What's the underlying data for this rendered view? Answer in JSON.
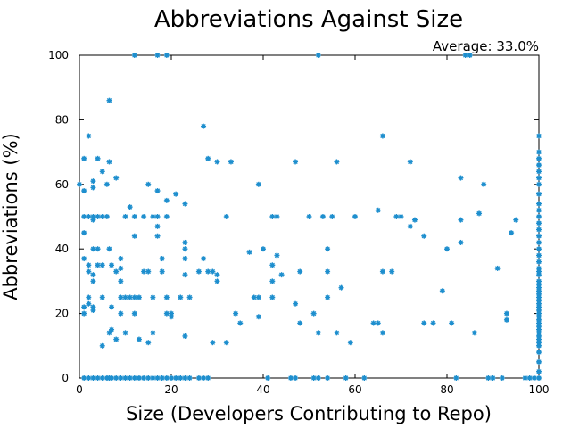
{
  "chart_data": {
    "type": "scatter",
    "title": "Abbreviations Against Size",
    "xlabel": "Size (Developers Contributing to Repo)",
    "ylabel": "Abbreviations (%)",
    "annotation": "Average: 33.0%",
    "xlim": [
      0,
      100
    ],
    "ylim": [
      0,
      100
    ],
    "xticks": [
      0,
      20,
      40,
      60,
      80,
      100
    ],
    "yticks": [
      0,
      20,
      40,
      60,
      80,
      100
    ],
    "grid": false,
    "marker_color": "#1f8fce",
    "points": [
      [
        0,
        60
      ],
      [
        1,
        68
      ],
      [
        1,
        58
      ],
      [
        1,
        50
      ],
      [
        1,
        45
      ],
      [
        1,
        37
      ],
      [
        1,
        22
      ],
      [
        1,
        20
      ],
      [
        1,
        0
      ],
      [
        2,
        75
      ],
      [
        2,
        50
      ],
      [
        2,
        35
      ],
      [
        2,
        33
      ],
      [
        2,
        25
      ],
      [
        2,
        23
      ],
      [
        2,
        0
      ],
      [
        3,
        61
      ],
      [
        3,
        59
      ],
      [
        3,
        50
      ],
      [
        3,
        49
      ],
      [
        3,
        40
      ],
      [
        3,
        32
      ],
      [
        3,
        30
      ],
      [
        3,
        22
      ],
      [
        3,
        21
      ],
      [
        3,
        0
      ],
      [
        4,
        68
      ],
      [
        4,
        50
      ],
      [
        4,
        40
      ],
      [
        4,
        35
      ],
      [
        4,
        0
      ],
      [
        5,
        64
      ],
      [
        5,
        50
      ],
      [
        5,
        35
      ],
      [
        5,
        25
      ],
      [
        5,
        10
      ],
      [
        5,
        0
      ],
      [
        6,
        60
      ],
      [
        6,
        50
      ],
      [
        6,
        0
      ],
      [
        6.5,
        86
      ],
      [
        6.5,
        67
      ],
      [
        6.5,
        40
      ],
      [
        6.5,
        14
      ],
      [
        6.5,
        0
      ],
      [
        7,
        35
      ],
      [
        7,
        22
      ],
      [
        7,
        15
      ],
      [
        7,
        0
      ],
      [
        8,
        62
      ],
      [
        8,
        33
      ],
      [
        8,
        12
      ],
      [
        8,
        0
      ],
      [
        9,
        37
      ],
      [
        9,
        34
      ],
      [
        9,
        30
      ],
      [
        9,
        25
      ],
      [
        9,
        20
      ],
      [
        9,
        0
      ],
      [
        10,
        50
      ],
      [
        10,
        25
      ],
      [
        10,
        14
      ],
      [
        10,
        0
      ],
      [
        11,
        53
      ],
      [
        11,
        25
      ],
      [
        11,
        0
      ],
      [
        12,
        100
      ],
      [
        12,
        50
      ],
      [
        12,
        44
      ],
      [
        12,
        25
      ],
      [
        12,
        20
      ],
      [
        12,
        0
      ],
      [
        13,
        25
      ],
      [
        13,
        12
      ],
      [
        13,
        0
      ],
      [
        14,
        50
      ],
      [
        14,
        33
      ],
      [
        14,
        0
      ],
      [
        15,
        60
      ],
      [
        15,
        33
      ],
      [
        15,
        11
      ],
      [
        15,
        0
      ],
      [
        16,
        50
      ],
      [
        16,
        25
      ],
      [
        16,
        14
      ],
      [
        16,
        0
      ],
      [
        17,
        100
      ],
      [
        17,
        58
      ],
      [
        17,
        50
      ],
      [
        17,
        47
      ],
      [
        17,
        44
      ],
      [
        17,
        0
      ],
      [
        18,
        37
      ],
      [
        18,
        33
      ],
      [
        18,
        0
      ],
      [
        19,
        100
      ],
      [
        19,
        55
      ],
      [
        19,
        50
      ],
      [
        19,
        25
      ],
      [
        19,
        20
      ],
      [
        19,
        0
      ],
      [
        20,
        20
      ],
      [
        20,
        19
      ],
      [
        20,
        0
      ],
      [
        21,
        57
      ],
      [
        21,
        0
      ],
      [
        22,
        25
      ],
      [
        22,
        0
      ],
      [
        23,
        54
      ],
      [
        23,
        42
      ],
      [
        23,
        40
      ],
      [
        23,
        37
      ],
      [
        23,
        32
      ],
      [
        23,
        13
      ],
      [
        23,
        0
      ],
      [
        24,
        25
      ],
      [
        24,
        0
      ],
      [
        26,
        33
      ],
      [
        26,
        0
      ],
      [
        27,
        78
      ],
      [
        27,
        37
      ],
      [
        27,
        0
      ],
      [
        28,
        68
      ],
      [
        28,
        33
      ],
      [
        28,
        0
      ],
      [
        29,
        33
      ],
      [
        29,
        11
      ],
      [
        30,
        67
      ],
      [
        30,
        32
      ],
      [
        30,
        30
      ],
      [
        32,
        11
      ],
      [
        32,
        50
      ],
      [
        33,
        67
      ],
      [
        34,
        20
      ],
      [
        35,
        17
      ],
      [
        37,
        39
      ],
      [
        38,
        25
      ],
      [
        39,
        25
      ],
      [
        39,
        19
      ],
      [
        39,
        60
      ],
      [
        40,
        40
      ],
      [
        41,
        0
      ],
      [
        42,
        50
      ],
      [
        42,
        35
      ],
      [
        42,
        30
      ],
      [
        42,
        25
      ],
      [
        43,
        50
      ],
      [
        43,
        38
      ],
      [
        44,
        32
      ],
      [
        46,
        0
      ],
      [
        47,
        67
      ],
      [
        47,
        23
      ],
      [
        47,
        0
      ],
      [
        48,
        33
      ],
      [
        48,
        17
      ],
      [
        50,
        50
      ],
      [
        51,
        20
      ],
      [
        51,
        0
      ],
      [
        52,
        100
      ],
      [
        52,
        14
      ],
      [
        52,
        0
      ],
      [
        53,
        50
      ],
      [
        54,
        40
      ],
      [
        54,
        33
      ],
      [
        54,
        25
      ],
      [
        54,
        0
      ],
      [
        55,
        50
      ],
      [
        56,
        67
      ],
      [
        56,
        14
      ],
      [
        57,
        28
      ],
      [
        58,
        0
      ],
      [
        59,
        11
      ],
      [
        60,
        50
      ],
      [
        62,
        0
      ],
      [
        64,
        17
      ],
      [
        65,
        52
      ],
      [
        65,
        17
      ],
      [
        66,
        75
      ],
      [
        66,
        33
      ],
      [
        66,
        14
      ],
      [
        68,
        33
      ],
      [
        69,
        50
      ],
      [
        70,
        50
      ],
      [
        72,
        67
      ],
      [
        72,
        47
      ],
      [
        73,
        49
      ],
      [
        75,
        44
      ],
      [
        75,
        17
      ],
      [
        77,
        17
      ],
      [
        79,
        27
      ],
      [
        80,
        40
      ],
      [
        81,
        17
      ],
      [
        82,
        0
      ],
      [
        83,
        62
      ],
      [
        83,
        49
      ],
      [
        83,
        42
      ],
      [
        84,
        100
      ],
      [
        85,
        100
      ],
      [
        86,
        14
      ],
      [
        87,
        51
      ],
      [
        88,
        60
      ],
      [
        89,
        0
      ],
      [
        90,
        0
      ],
      [
        91,
        34
      ],
      [
        92,
        0
      ],
      [
        93,
        20
      ],
      [
        93,
        18
      ],
      [
        94,
        45
      ],
      [
        95,
        49
      ],
      [
        97,
        0
      ],
      [
        98,
        0
      ],
      [
        99,
        0
      ],
      [
        100,
        75
      ],
      [
        100,
        70
      ],
      [
        100,
        68
      ],
      [
        100,
        66
      ],
      [
        100,
        64
      ],
      [
        100,
        62
      ],
      [
        100,
        60
      ],
      [
        100,
        57
      ],
      [
        100,
        54
      ],
      [
        100,
        52
      ],
      [
        100,
        50
      ],
      [
        100,
        48
      ],
      [
        100,
        46
      ],
      [
        100,
        44
      ],
      [
        100,
        42
      ],
      [
        100,
        40
      ],
      [
        100,
        38
      ],
      [
        100,
        36
      ],
      [
        100,
        34
      ],
      [
        100,
        33
      ],
      [
        100,
        32
      ],
      [
        100,
        30
      ],
      [
        100,
        29
      ],
      [
        100,
        28
      ],
      [
        100,
        27
      ],
      [
        100,
        26
      ],
      [
        100,
        25
      ],
      [
        100,
        24
      ],
      [
        100,
        23
      ],
      [
        100,
        22
      ],
      [
        100,
        21
      ],
      [
        100,
        20
      ],
      [
        100,
        19
      ],
      [
        100,
        18
      ],
      [
        100,
        17
      ],
      [
        100,
        16
      ],
      [
        100,
        15
      ],
      [
        100,
        14
      ],
      [
        100,
        13
      ],
      [
        100,
        12
      ],
      [
        100,
        11
      ],
      [
        100,
        10
      ],
      [
        100,
        8
      ],
      [
        100,
        5
      ],
      [
        100,
        2
      ],
      [
        100,
        0
      ]
    ]
  }
}
